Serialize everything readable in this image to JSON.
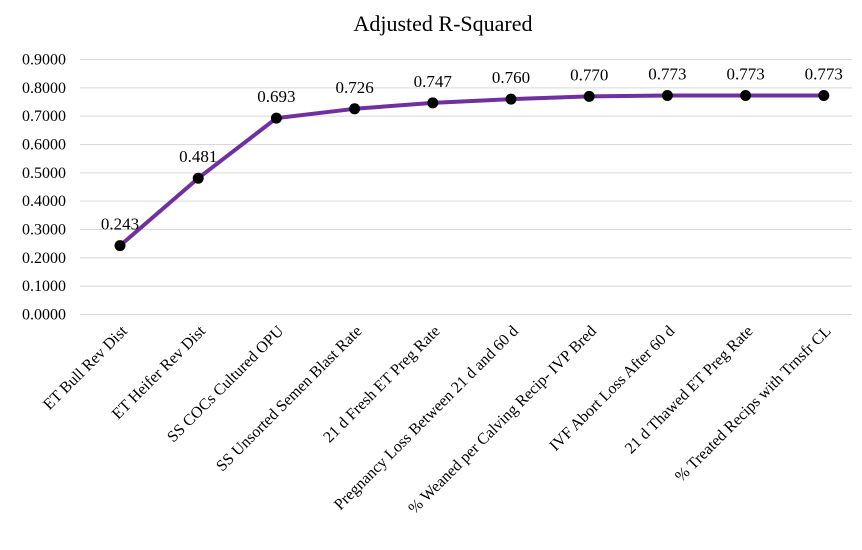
{
  "chart_data": {
    "type": "line",
    "title": "Adjusted R-Squared",
    "xlabel": "",
    "ylabel": "",
    "ylim": [
      0,
      0.9
    ],
    "y_ticks": [
      "0.0000",
      "0.1000",
      "0.2000",
      "0.3000",
      "0.4000",
      "0.5000",
      "0.6000",
      "0.7000",
      "0.8000",
      "0.9000"
    ],
    "y_tick_values": [
      0,
      0.1,
      0.2,
      0.3,
      0.4,
      0.5,
      0.6,
      0.7,
      0.8,
      0.9
    ],
    "grid": true,
    "categories": [
      "ET Bull Rev Dist",
      "ET Heifer Rev Dist",
      "SS COCs Cultured OPU",
      "SS Unsorted Semen Blast Rate",
      "21 d Fresh ET Preg Rate",
      "Pregnancy Loss Between 21 d and 60 d",
      "% Weaned per Calving Recip- IVP Bred",
      "IVF Abort Loss After 60 d",
      "21 d Thawed ET Preg Rate",
      "% Treated Recips with Trnsfr CL"
    ],
    "series": [
      {
        "values": [
          0.243,
          0.481,
          0.693,
          0.726,
          0.747,
          0.76,
          0.77,
          0.773,
          0.773,
          0.773
        ],
        "labels": [
          "0.243",
          "0.481",
          "0.693",
          "0.726",
          "0.747",
          "0.760",
          "0.770",
          "0.773",
          "0.773",
          "0.773"
        ]
      }
    ],
    "colors": {
      "line": "#7030a0",
      "marker": "#000000",
      "grid": "#d9d9d9"
    }
  }
}
